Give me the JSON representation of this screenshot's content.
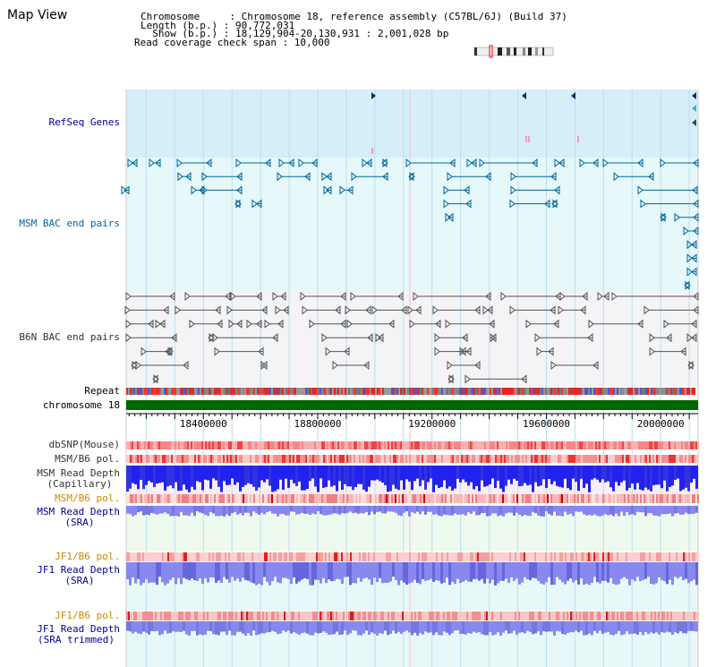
{
  "header": {
    "view_title": "Map View",
    "info_lines": [
      "Chromosome     : Chromosome 18, reference assembly (C57BL/6J) (Build 37)",
      "Length (b.p.) : 90,772,031",
      "  Show (b.p.) : 18,129,904-20,130,931 : 2,001,028 bp",
      "Read coverage check span : 10,000"
    ]
  },
  "tracks": {
    "refseq": {
      "label": "RefSeq Genes",
      "color": "#000099"
    },
    "msm_bac": {
      "label": "MSM BAC end pairs",
      "color": "#006699"
    },
    "b6n_bac": {
      "label": "B6N BAC end pairs",
      "color": "#333333"
    },
    "repeat": {
      "label": "Repeat"
    },
    "chromosome": {
      "label": "chromosome 18"
    },
    "dbsnp": {
      "label": "dbSNP(Mouse)"
    },
    "msm_b6_pol_1": {
      "label": "MSM/B6 pol."
    },
    "msm_depth_cap": {
      "line1": "MSM Read Depth",
      "line2": "(Capillary)"
    },
    "msm_b6_pol_2": {
      "label": "MSM/B6 pol.",
      "color": "#cc8800"
    },
    "msm_depth_sra": {
      "line1": "MSM Read Depth",
      "line2": "(SRA)",
      "color": "#000099"
    },
    "jf1_b6_pol_1": {
      "label": "JF1/B6 pol.",
      "color": "#cc8800"
    },
    "jf1_depth_sra": {
      "line1": "JF1 Read Depth",
      "line2": "(SRA)",
      "color": "#000099"
    },
    "jf1_b6_pol_2": {
      "label": "JF1/B6 pol.",
      "color": "#cc8800"
    },
    "jf1_depth_trim": {
      "line1": "JF1 Read Depth",
      "line2": "(SRA trimmed)",
      "color": "#000099"
    }
  },
  "scale": {
    "start": 18129904,
    "end": 20130931,
    "ticks": [
      {
        "value": 18400000,
        "label": "18400000"
      },
      {
        "value": 18800000,
        "label": "18800000"
      },
      {
        "value": 19200000,
        "label": "19200000"
      },
      {
        "value": 19600000,
        "label": "19600000"
      },
      {
        "value": 20000000,
        "label": "20000000"
      }
    ]
  },
  "colors": {
    "refseq_bg": "#d6eef8",
    "msm_bg": "#e6f8fa",
    "b6n_bg": "#f4f4f6",
    "cap_bg": "#f8eef8",
    "sra_bg": "#eefaee",
    "jf1_bg": "#e8f8f8",
    "chromosome_bar": "#006600",
    "depth_dark": "#2222ee",
    "depth_light": "#8888ee",
    "pol_red": "#ee2222",
    "pol_pink": "#ffcccc",
    "grid_line": "#bbddee",
    "highlight_line": "#ffbbcc"
  }
}
